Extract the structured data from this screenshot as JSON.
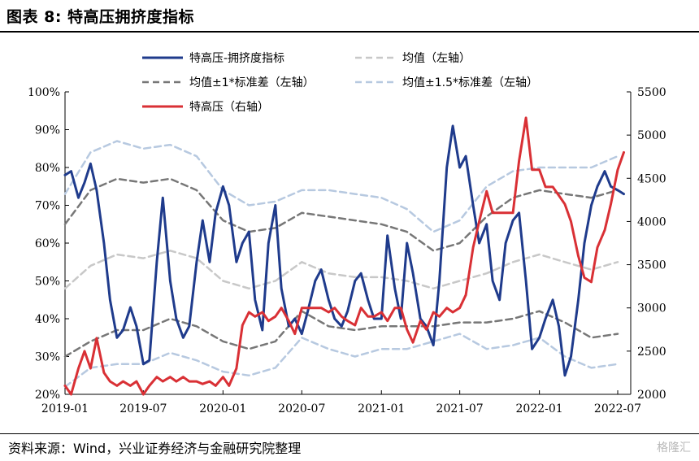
{
  "header": {
    "title": "图表 8:  特高压拥挤度指标"
  },
  "footer": {
    "source": "资料来源：Wind，兴业证券经济与金融研究院整理",
    "watermark": "格隆汇"
  },
  "colors": {
    "index": "#1f3b8c",
    "price": "#d93035",
    "mean": "#c8c8c8",
    "band1": "#777777",
    "band15": "#b7c9e0"
  },
  "chart_data": {
    "type": "line",
    "x_ticks": [
      "2019-01",
      "2019-07",
      "2020-01",
      "2020-07",
      "2021-01",
      "2021-07",
      "2022-01",
      "2022-07"
    ],
    "y_left": {
      "lim": [
        0.2,
        1.0
      ],
      "ticks": [
        "20%",
        "30%",
        "40%",
        "50%",
        "60%",
        "70%",
        "80%",
        "90%",
        "100%"
      ]
    },
    "y_right": {
      "lim": [
        2000,
        5500
      ],
      "ticks": [
        "2000",
        "2500",
        "3000",
        "3500",
        "4000",
        "4500",
        "5000",
        "5500"
      ]
    },
    "grid": false,
    "legend": {
      "placement": "top",
      "entries": [
        {
          "label": "特高压-拥挤度指标",
          "series": "index"
        },
        {
          "label": "均值（左轴）",
          "series": "mean"
        },
        {
          "label": "均值±1*标准差（左轴）",
          "series": "band1"
        },
        {
          "label": "均值±1.5*标准差（左轴）",
          "series": "band15"
        },
        {
          "label": "特高压（右轴）",
          "series": "price"
        }
      ]
    },
    "series": [
      {
        "key": "index",
        "name": "特高压-拥挤度指标",
        "axis": "left",
        "style": "solid",
        "x": [
          "2019-01-01",
          "2019-01-15",
          "2019-02-01",
          "2019-02-15",
          "2019-03-01",
          "2019-03-15",
          "2019-04-01",
          "2019-04-15",
          "2019-05-01",
          "2019-05-15",
          "2019-06-01",
          "2019-06-15",
          "2019-07-01",
          "2019-07-15",
          "2019-08-01",
          "2019-08-15",
          "2019-09-01",
          "2019-09-15",
          "2019-10-01",
          "2019-10-15",
          "2019-11-01",
          "2019-11-15",
          "2019-12-01",
          "2019-12-15",
          "2020-01-01",
          "2020-01-15",
          "2020-02-01",
          "2020-02-15",
          "2020-03-01",
          "2020-03-15",
          "2020-04-01",
          "2020-04-15",
          "2020-05-01",
          "2020-05-15",
          "2020-06-01",
          "2020-06-15",
          "2020-07-01",
          "2020-07-15",
          "2020-08-01",
          "2020-08-15",
          "2020-09-01",
          "2020-09-15",
          "2020-10-01",
          "2020-10-15",
          "2020-11-01",
          "2020-11-15",
          "2020-12-01",
          "2020-12-15",
          "2021-01-01",
          "2021-01-15",
          "2021-02-01",
          "2021-02-15",
          "2021-03-01",
          "2021-03-15",
          "2021-04-01",
          "2021-04-15",
          "2021-05-01",
          "2021-05-15",
          "2021-06-01",
          "2021-06-15",
          "2021-07-01",
          "2021-07-15",
          "2021-08-01",
          "2021-08-15",
          "2021-09-01",
          "2021-09-15",
          "2021-10-01",
          "2021-10-15",
          "2021-11-01",
          "2021-11-15",
          "2021-12-01",
          "2021-12-15",
          "2022-01-01",
          "2022-01-15",
          "2022-02-01",
          "2022-02-15",
          "2022-03-01",
          "2022-03-15",
          "2022-04-01",
          "2022-04-15",
          "2022-05-01",
          "2022-05-15",
          "2022-06-01",
          "2022-06-15",
          "2022-07-01",
          "2022-07-15"
        ],
        "y": [
          0.78,
          0.79,
          0.72,
          0.76,
          0.81,
          0.74,
          0.6,
          0.45,
          0.35,
          0.37,
          0.43,
          0.38,
          0.28,
          0.29,
          0.55,
          0.72,
          0.5,
          0.4,
          0.35,
          0.38,
          0.55,
          0.66,
          0.55,
          0.68,
          0.75,
          0.7,
          0.55,
          0.6,
          0.63,
          0.45,
          0.37,
          0.6,
          0.7,
          0.48,
          0.38,
          0.4,
          0.36,
          0.42,
          0.5,
          0.53,
          0.45,
          0.4,
          0.38,
          0.42,
          0.5,
          0.52,
          0.45,
          0.4,
          0.4,
          0.62,
          0.48,
          0.4,
          0.6,
          0.52,
          0.4,
          0.38,
          0.33,
          0.5,
          0.8,
          0.91,
          0.8,
          0.83,
          0.7,
          0.6,
          0.65,
          0.5,
          0.45,
          0.6,
          0.66,
          0.68,
          0.5,
          0.32,
          0.35,
          0.4,
          0.45,
          0.38,
          0.25,
          0.3,
          0.45,
          0.6,
          0.7,
          0.75,
          0.79,
          0.75,
          0.74,
          0.73
        ]
      },
      {
        "key": "price",
        "name": "特高压（右轴）",
        "axis": "right",
        "style": "solid",
        "x": [
          "2019-01-01",
          "2019-01-15",
          "2019-02-01",
          "2019-02-15",
          "2019-03-01",
          "2019-03-15",
          "2019-04-01",
          "2019-04-15",
          "2019-05-01",
          "2019-05-15",
          "2019-06-01",
          "2019-06-15",
          "2019-07-01",
          "2019-07-15",
          "2019-08-01",
          "2019-08-15",
          "2019-09-01",
          "2019-09-15",
          "2019-10-01",
          "2019-10-15",
          "2019-11-01",
          "2019-11-15",
          "2019-12-01",
          "2019-12-15",
          "2020-01-01",
          "2020-01-15",
          "2020-02-01",
          "2020-02-15",
          "2020-03-01",
          "2020-03-15",
          "2020-04-01",
          "2020-04-15",
          "2020-05-01",
          "2020-05-15",
          "2020-06-01",
          "2020-06-15",
          "2020-07-01",
          "2020-07-15",
          "2020-08-01",
          "2020-08-15",
          "2020-09-01",
          "2020-09-15",
          "2020-10-01",
          "2020-10-15",
          "2020-11-01",
          "2020-11-15",
          "2020-12-01",
          "2020-12-15",
          "2021-01-01",
          "2021-01-15",
          "2021-02-01",
          "2021-02-15",
          "2021-03-01",
          "2021-03-15",
          "2021-04-01",
          "2021-04-15",
          "2021-05-01",
          "2021-05-15",
          "2021-06-01",
          "2021-06-15",
          "2021-07-01",
          "2021-07-15",
          "2021-08-01",
          "2021-08-15",
          "2021-09-01",
          "2021-09-15",
          "2021-10-01",
          "2021-10-15",
          "2021-11-01",
          "2021-11-15",
          "2021-12-01",
          "2021-12-15",
          "2022-01-01",
          "2022-01-15",
          "2022-02-01",
          "2022-02-15",
          "2022-03-01",
          "2022-03-15",
          "2022-04-01",
          "2022-04-15",
          "2022-05-01",
          "2022-05-15",
          "2022-06-01",
          "2022-06-15",
          "2022-07-01",
          "2022-07-15"
        ],
        "y": [
          2100,
          2000,
          2300,
          2500,
          2300,
          2650,
          2250,
          2150,
          2100,
          2150,
          2100,
          2150,
          2000,
          2100,
          2200,
          2150,
          2200,
          2150,
          2200,
          2150,
          2150,
          2120,
          2150,
          2100,
          2200,
          2100,
          2300,
          2800,
          2950,
          2900,
          2950,
          2850,
          2900,
          3000,
          2850,
          2700,
          3000,
          3000,
          3000,
          3000,
          2950,
          3000,
          2900,
          2850,
          2800,
          3000,
          2900,
          2900,
          2950,
          2850,
          3000,
          3000,
          2750,
          2600,
          2850,
          2750,
          2950,
          2900,
          3000,
          2950,
          3000,
          3150,
          3700,
          4000,
          4350,
          4100,
          4100,
          4100,
          4100,
          4700,
          5200,
          4600,
          4600,
          4400,
          4400,
          4300,
          4200,
          4000,
          3600,
          3350,
          3300,
          3700,
          3900,
          4200,
          4600,
          4800
        ]
      },
      {
        "key": "mean",
        "name": "均值（左轴）",
        "axis": "left",
        "style": "dashed",
        "x": [
          "2019-01-01",
          "2019-03-01",
          "2019-05-01",
          "2019-07-01",
          "2019-09-01",
          "2019-11-01",
          "2020-01-01",
          "2020-03-01",
          "2020-05-01",
          "2020-07-01",
          "2020-09-01",
          "2020-11-01",
          "2021-01-01",
          "2021-03-01",
          "2021-05-01",
          "2021-07-01",
          "2021-09-01",
          "2021-11-01",
          "2022-01-01",
          "2022-03-01",
          "2022-05-01",
          "2022-07-01"
        ],
        "y": [
          0.48,
          0.54,
          0.57,
          0.56,
          0.58,
          0.56,
          0.5,
          0.48,
          0.5,
          0.55,
          0.52,
          0.51,
          0.51,
          0.5,
          0.48,
          0.5,
          0.52,
          0.55,
          0.57,
          0.55,
          0.53,
          0.55
        ]
      },
      {
        "key": "band1_upper",
        "name": "",
        "axis": "left",
        "style": "dashed",
        "x": [
          "2019-01-01",
          "2019-03-01",
          "2019-05-01",
          "2019-07-01",
          "2019-09-01",
          "2019-11-01",
          "2020-01-01",
          "2020-03-01",
          "2020-05-01",
          "2020-07-01",
          "2020-09-01",
          "2020-11-01",
          "2021-01-01",
          "2021-03-01",
          "2021-05-01",
          "2021-07-01",
          "2021-09-01",
          "2021-11-01",
          "2022-01-01",
          "2022-03-01",
          "2022-05-01",
          "2022-07-01"
        ],
        "y": [
          0.65,
          0.74,
          0.77,
          0.76,
          0.77,
          0.74,
          0.66,
          0.63,
          0.64,
          0.68,
          0.67,
          0.66,
          0.65,
          0.63,
          0.58,
          0.6,
          0.67,
          0.72,
          0.74,
          0.73,
          0.72,
          0.74
        ]
      },
      {
        "key": "band1_lower",
        "name": "",
        "axis": "left",
        "style": "dashed",
        "x": [
          "2019-01-01",
          "2019-03-01",
          "2019-05-01",
          "2019-07-01",
          "2019-09-01",
          "2019-11-01",
          "2020-01-01",
          "2020-03-01",
          "2020-05-01",
          "2020-07-01",
          "2020-09-01",
          "2020-11-01",
          "2021-01-01",
          "2021-03-01",
          "2021-05-01",
          "2021-07-01",
          "2021-09-01",
          "2021-11-01",
          "2022-01-01",
          "2022-03-01",
          "2022-05-01",
          "2022-07-01"
        ],
        "y": [
          0.3,
          0.34,
          0.37,
          0.37,
          0.4,
          0.38,
          0.34,
          0.32,
          0.34,
          0.42,
          0.38,
          0.37,
          0.38,
          0.38,
          0.38,
          0.39,
          0.39,
          0.4,
          0.42,
          0.39,
          0.35,
          0.36
        ]
      },
      {
        "key": "band15_upper",
        "name": "",
        "axis": "left",
        "style": "dashed",
        "x": [
          "2019-01-01",
          "2019-03-01",
          "2019-05-01",
          "2019-07-01",
          "2019-09-01",
          "2019-11-01",
          "2020-01-01",
          "2020-03-01",
          "2020-05-01",
          "2020-07-01",
          "2020-09-01",
          "2020-11-01",
          "2021-01-01",
          "2021-03-01",
          "2021-05-01",
          "2021-07-01",
          "2021-09-01",
          "2021-11-01",
          "2022-01-01",
          "2022-03-01",
          "2022-05-01",
          "2022-07-01"
        ],
        "y": [
          0.73,
          0.84,
          0.87,
          0.85,
          0.86,
          0.83,
          0.74,
          0.7,
          0.71,
          0.74,
          0.74,
          0.73,
          0.72,
          0.69,
          0.63,
          0.66,
          0.75,
          0.79,
          0.8,
          0.8,
          0.8,
          0.83
        ]
      },
      {
        "key": "band15_lower",
        "name": "",
        "axis": "left",
        "style": "dashed",
        "x": [
          "2019-01-01",
          "2019-03-01",
          "2019-05-01",
          "2019-07-01",
          "2019-09-01",
          "2019-11-01",
          "2020-01-01",
          "2020-03-01",
          "2020-05-01",
          "2020-07-01",
          "2020-09-01",
          "2020-11-01",
          "2021-01-01",
          "2021-03-01",
          "2021-05-01",
          "2021-07-01",
          "2021-09-01",
          "2021-11-01",
          "2022-01-01",
          "2022-03-01",
          "2022-05-01",
          "2022-07-01"
        ],
        "y": [
          0.22,
          0.27,
          0.28,
          0.28,
          0.31,
          0.29,
          0.26,
          0.25,
          0.27,
          0.35,
          0.32,
          0.3,
          0.32,
          0.32,
          0.34,
          0.36,
          0.32,
          0.33,
          0.35,
          0.3,
          0.27,
          0.28
        ]
      }
    ]
  }
}
